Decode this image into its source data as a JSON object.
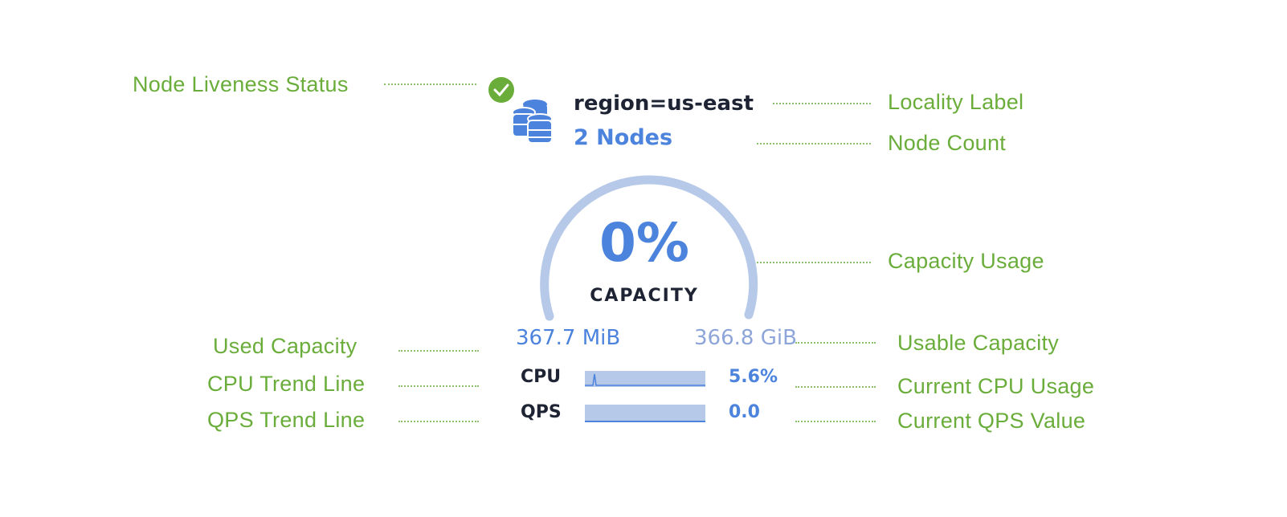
{
  "annotations": {
    "liveness": "Node Liveness Status",
    "locality": "Locality Label",
    "node_count": "Node Count",
    "capacity_usage": "Capacity Usage",
    "used_capacity": "Used Capacity",
    "usable_capacity": "Usable Capacity",
    "cpu_trend": "CPU Trend Line",
    "current_cpu": "Current CPU Usage",
    "qps_trend": "QPS Trend Line",
    "current_qps": "Current QPS Value"
  },
  "widget": {
    "status": "live",
    "status_icon": "check-circle-icon",
    "node_icon": "database-stack-icon",
    "locality": "region=us-east",
    "nodes": "2 Nodes",
    "capacity_percent": "0%",
    "capacity_label": "CAPACITY",
    "capacity_fraction": 0.0,
    "used": "367.7 MiB",
    "usable": "366.8 GiB",
    "cpu_label": "CPU",
    "cpu_value": "5.6%",
    "qps_label": "QPS",
    "qps_value": "0.0"
  },
  "colors": {
    "annotation": "#6aad3a",
    "accent": "#4c83dd",
    "gauge": "#b7c9e8",
    "status_ok": "#6aad3a"
  }
}
